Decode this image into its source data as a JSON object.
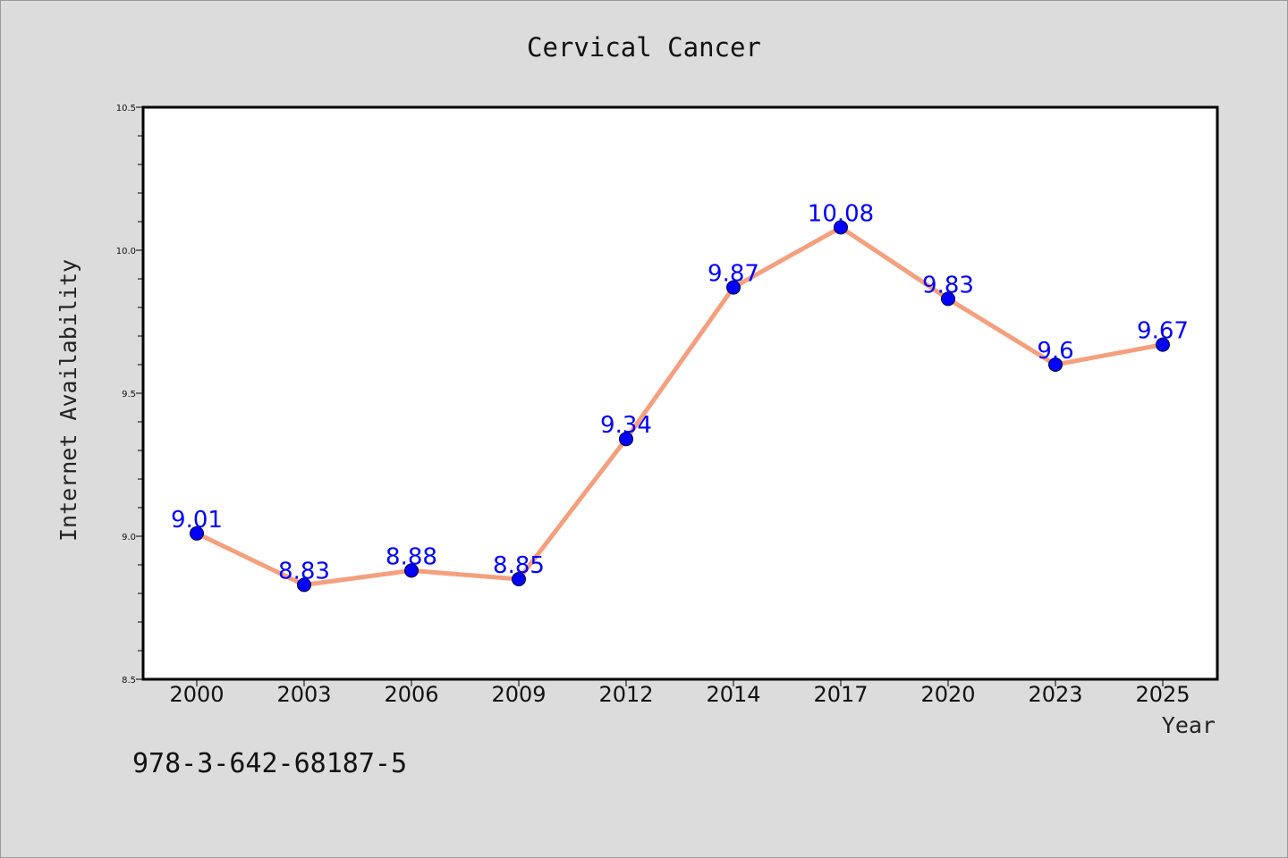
{
  "chart_data": {
    "type": "line",
    "title": "Cervical Cancer",
    "xlabel": "Year",
    "ylabel": "Internet Availability",
    "categories": [
      "2000",
      "2003",
      "2006",
      "2009",
      "2012",
      "2014",
      "2017",
      "2020",
      "2023",
      "2025"
    ],
    "series": [
      {
        "values": [
          9.01,
          8.83,
          8.88,
          8.85,
          9.34,
          9.87,
          10.08,
          9.83,
          9.6,
          9.67
        ],
        "data_labels": [
          "9.01",
          "8.83",
          "8.88",
          "8.85",
          "9.34",
          "9.87",
          "10.08",
          "9.83",
          "9.6",
          "9.67"
        ],
        "line_color": "#f4a07e",
        "marker_color": "#0000ff"
      }
    ],
    "ylim": [
      8.5,
      10.5
    ],
    "yticks": [
      "8.5",
      "9.0",
      "9.5",
      "10.0",
      "10.5"
    ],
    "grid": false,
    "legend": "none"
  },
  "footer_text": "978-3-642-68187-5",
  "colors": {
    "background": "#dcdcdc",
    "plot_background": "#ffffff",
    "line": "#f4a07e",
    "marker": "#0000ff",
    "data_label": "#0000ff"
  }
}
